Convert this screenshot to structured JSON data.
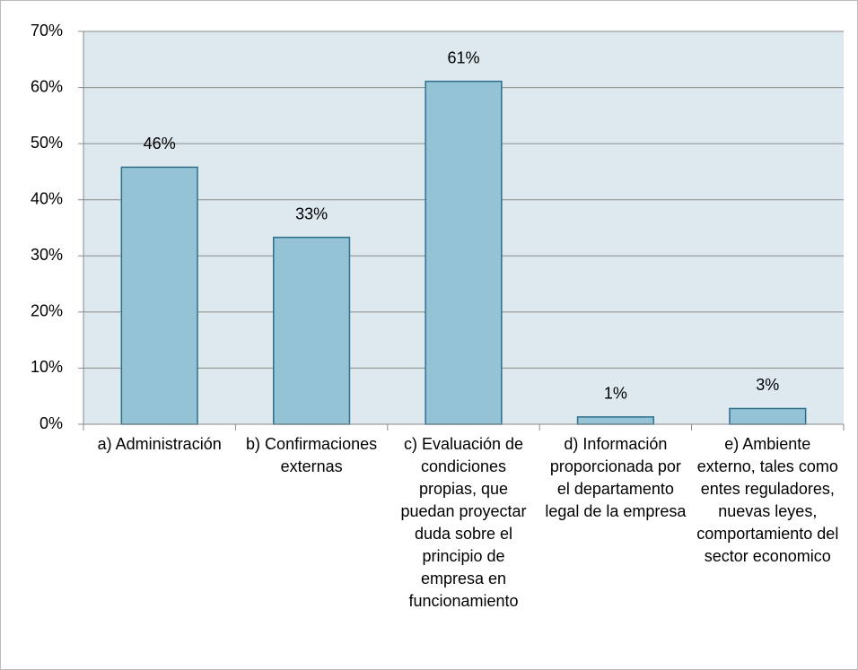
{
  "chart_data": {
    "type": "bar",
    "categories": [
      "a) Administración",
      "b) Confirmaciones externas",
      "c) Evaluación de condiciones propias, que puedan proyectar duda sobre el principio de empresa en funcionamiento",
      "d) Información proporcionada por el departamento legal de la empresa",
      "e) Ambiente externo, tales como entes reguladores, nuevas leyes, comportamiento del sector economico"
    ],
    "values": [
      45.8,
      33.3,
      61.1,
      1.3,
      2.8
    ],
    "value_labels": [
      "46%",
      "33%",
      "61%",
      "1%",
      "3%"
    ],
    "color": "#93c3d5",
    "ylim": [
      0,
      70
    ],
    "yticks": [
      {
        "value": 0,
        "label": "0%"
      },
      {
        "value": 10,
        "label": "10%"
      },
      {
        "value": 20,
        "label": "20%"
      },
      {
        "value": 30,
        "label": "30%"
      },
      {
        "value": 40,
        "label": "40%"
      },
      {
        "value": 50,
        "label": "50%"
      },
      {
        "value": 60,
        "label": "60%"
      },
      {
        "value": 70,
        "label": "70%"
      }
    ],
    "grid": true
  }
}
